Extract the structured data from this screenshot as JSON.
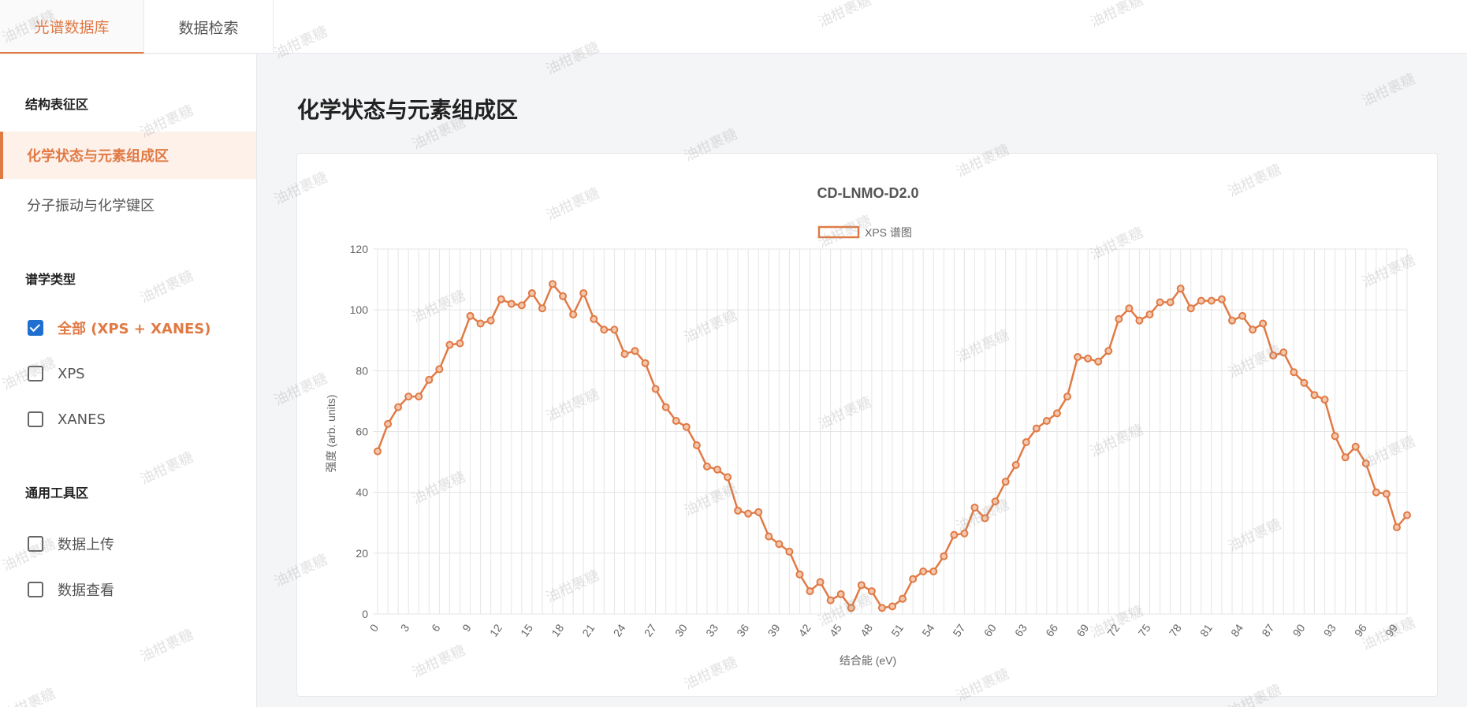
{
  "header": {
    "tabs": [
      {
        "label": "光谱数据库",
        "active": true
      },
      {
        "label": "数据检索",
        "active": false
      }
    ]
  },
  "sidebar": {
    "section_structure": "结构表征区",
    "nav_items": [
      {
        "label": "化学状态与元素组成区",
        "active": true
      },
      {
        "label": "分子振动与化学键区",
        "active": false
      }
    ],
    "section_spectrum": "谱学类型",
    "spectrum_types": [
      {
        "label": "全部 (XPS + XANES)",
        "checked": true
      },
      {
        "label": "XPS",
        "checked": false
      },
      {
        "label": "XANES",
        "checked": false
      }
    ],
    "section_tools": "通用工具区",
    "tools": [
      {
        "label": "数据上传",
        "checked": false
      },
      {
        "label": "数据查看",
        "checked": false
      }
    ]
  },
  "main": {
    "title": "化学状态与元素组成区"
  },
  "watermark_text": "油柑裹糖",
  "colors": {
    "accent": "#e07a45",
    "series": "#e07a45",
    "grid": "#e5e5e5"
  },
  "chart_data": {
    "type": "line",
    "title": "CD-LNMO-D2.0",
    "xlabel": "结合能 (eV)",
    "ylabel": "强度 (arb. units)",
    "ylim": [
      0,
      120
    ],
    "yticks": [
      0,
      20,
      40,
      60,
      80,
      100,
      120
    ],
    "xticks": [
      0,
      3,
      6,
      9,
      12,
      15,
      18,
      21,
      24,
      27,
      30,
      33,
      36,
      39,
      42,
      45,
      48,
      51,
      54,
      57,
      60,
      63,
      66,
      69,
      72,
      75,
      78,
      81,
      84,
      87,
      90,
      93,
      96,
      99
    ],
    "grid": true,
    "legend_position": "top-center",
    "x": [
      0,
      1,
      2,
      3,
      4,
      5,
      6,
      7,
      8,
      9,
      10,
      11,
      12,
      13,
      14,
      15,
      16,
      17,
      18,
      19,
      20,
      21,
      22,
      23,
      24,
      25,
      26,
      27,
      28,
      29,
      30,
      31,
      32,
      33,
      34,
      35,
      36,
      37,
      38,
      39,
      40,
      41,
      42,
      43,
      44,
      45,
      46,
      47,
      48,
      49,
      50,
      51,
      52,
      53,
      54,
      55,
      56,
      57,
      58,
      59,
      60,
      61,
      62,
      63,
      64,
      65,
      66,
      67,
      68,
      69,
      70,
      71,
      72,
      73,
      74,
      75,
      76,
      77,
      78,
      79,
      80,
      81,
      82,
      83,
      84,
      85,
      86,
      87,
      88,
      89,
      90,
      91,
      92,
      93,
      94,
      95,
      96,
      97,
      98,
      99,
      100
    ],
    "series": [
      {
        "name": "XPS 谱图",
        "values": [
          53.5,
          62.5,
          68,
          71.5,
          71.5,
          77,
          80.5,
          88.5,
          89,
          98,
          95.5,
          96.5,
          103.5,
          102,
          101.5,
          105.5,
          100.5,
          108.5,
          104.5,
          98.5,
          105.5,
          97,
          93.5,
          93.5,
          85.5,
          86.5,
          82.5,
          74,
          68,
          63.5,
          61.5,
          55.5,
          48.5,
          47.5,
          45,
          34,
          33,
          33.5,
          25.5,
          23,
          20.5,
          13,
          7.5,
          10.5,
          4.5,
          6.5,
          2,
          9.5,
          7.5,
          2,
          2.5,
          5,
          11.5,
          14,
          14,
          19,
          26,
          26.5,
          35,
          31.5,
          37,
          43.5,
          49,
          56.5,
          61,
          63.5,
          66,
          71.5,
          84.5,
          84,
          83,
          86.5,
          97,
          100.5,
          96.5,
          98.5,
          102.5,
          102.5,
          107,
          100.5,
          103,
          103,
          103.5,
          96.5,
          98,
          93.5,
          95.5,
          85,
          86,
          79.5,
          76,
          72,
          70.5,
          58.5,
          51.5,
          55,
          49.5,
          40,
          39.5,
          28.5,
          32.5
        ]
      }
    ]
  }
}
